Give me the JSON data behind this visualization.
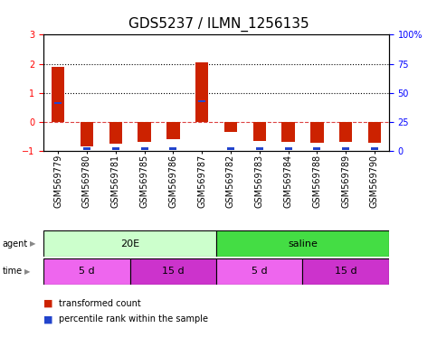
{
  "title": "GDS5237 / ILMN_1256135",
  "samples": [
    "GSM569779",
    "GSM569780",
    "GSM569781",
    "GSM569785",
    "GSM569786",
    "GSM569787",
    "GSM569782",
    "GSM569783",
    "GSM569784",
    "GSM569788",
    "GSM569789",
    "GSM569790"
  ],
  "red_values": [
    1.9,
    -0.85,
    -0.75,
    -0.7,
    -0.6,
    2.04,
    -0.35,
    -0.65,
    -0.7,
    -0.72,
    -0.7,
    -0.72
  ],
  "blue_values": [
    0.65,
    -0.92,
    -0.92,
    -0.92,
    -0.92,
    0.72,
    -0.92,
    -0.92,
    -0.92,
    -0.92,
    -0.92,
    -0.92
  ],
  "ylim_left": [
    -1,
    3
  ],
  "ylim_right": [
    0,
    100
  ],
  "yticks_left": [
    -1,
    0,
    1,
    2,
    3
  ],
  "yticks_right": [
    0,
    25,
    50,
    75,
    100
  ],
  "ytick_labels_right": [
    "0",
    "25",
    "50",
    "75",
    "100%"
  ],
  "hlines_dotted": [
    1,
    2
  ],
  "hline_dashed_color": "#dd4444",
  "agent_groups": [
    {
      "label": "20E",
      "start": 0,
      "end": 6,
      "color": "#ccffcc"
    },
    {
      "label": "saline",
      "start": 6,
      "end": 12,
      "color": "#44dd44"
    }
  ],
  "time_groups": [
    {
      "label": "5 d",
      "start": 0,
      "end": 3,
      "color": "#ee66ee"
    },
    {
      "label": "15 d",
      "start": 3,
      "end": 6,
      "color": "#cc33cc"
    },
    {
      "label": "5 d",
      "start": 6,
      "end": 9,
      "color": "#ee66ee"
    },
    {
      "label": "15 d",
      "start": 9,
      "end": 12,
      "color": "#cc33cc"
    }
  ],
  "legend_red": "transformed count",
  "legend_blue": "percentile rank within the sample",
  "bar_color_red": "#cc2200",
  "bar_color_blue": "#2244cc",
  "bar_width": 0.45,
  "title_fontsize": 11,
  "tick_fontsize": 7,
  "label_fontsize": 8,
  "background_color": "#ffffff"
}
